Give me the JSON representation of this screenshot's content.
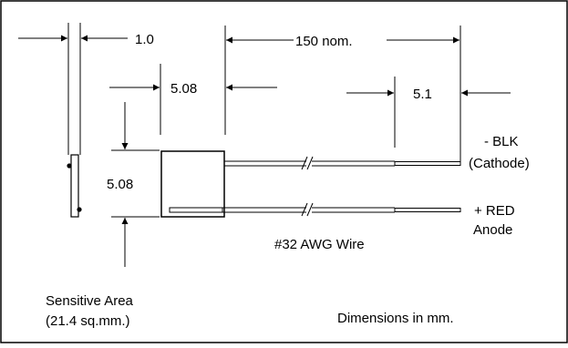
{
  "dimensions": {
    "thickness": "1.0",
    "chip_width": "5.08",
    "lead_length": "150 nom.",
    "strip_length": "5.1",
    "chip_height": "5.08"
  },
  "leads": {
    "cathode_line1": "- BLK",
    "cathode_line2": "(Cathode)",
    "anode_line1": "+ RED",
    "anode_line2": "Anode",
    "wire": "#32 AWG Wire"
  },
  "notes": {
    "sensitive_area_line1": "Sensitive Area",
    "sensitive_area_line2": "(21.4 sq.mm.)",
    "units": "Dimensions in mm."
  }
}
